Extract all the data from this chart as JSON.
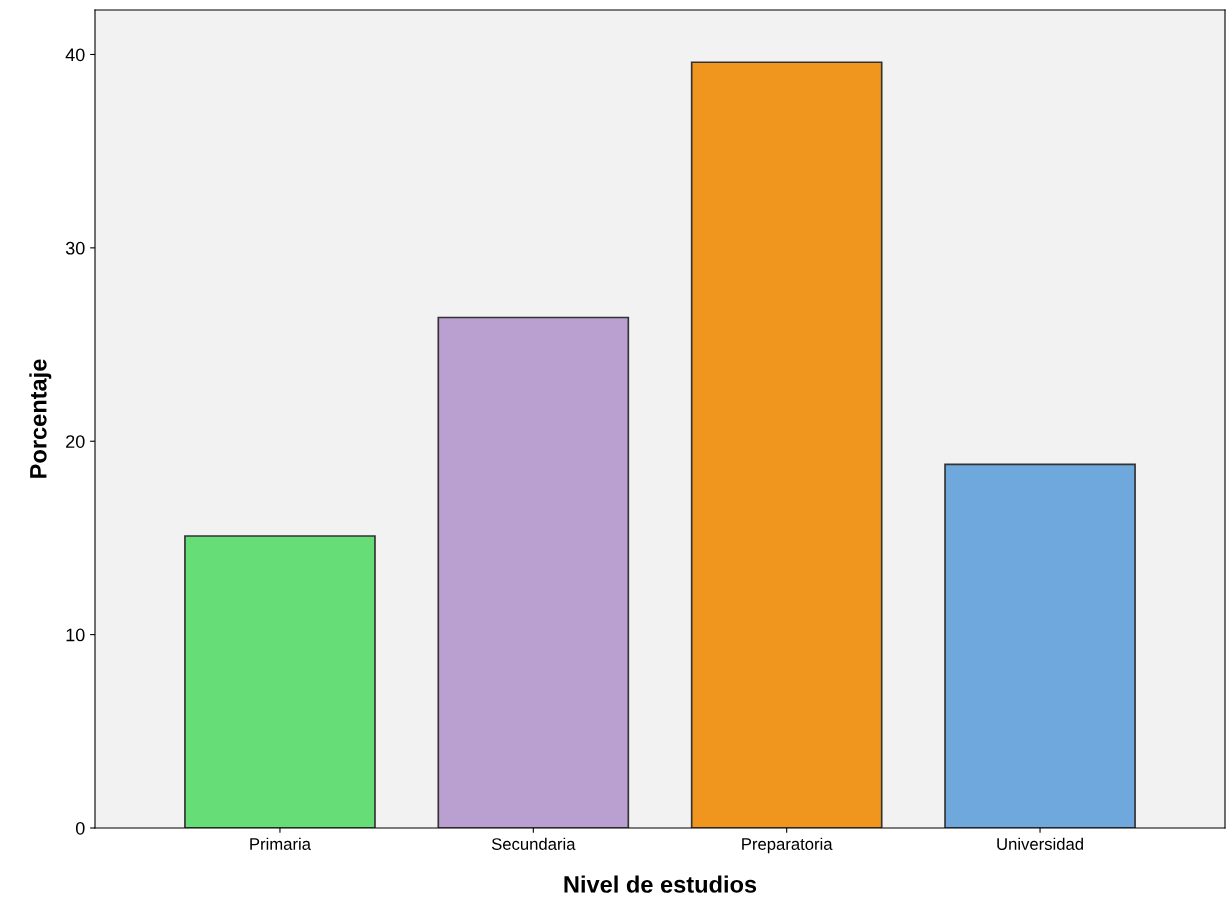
{
  "chart_data": {
    "type": "bar",
    "xlabel": "Nivel de estudios",
    "ylabel": "Porcentaje",
    "categories": [
      "Primaria",
      "Secundaria",
      "Preparatoria",
      "Universidad"
    ],
    "values": [
      15.1,
      26.4,
      39.6,
      18.8
    ],
    "colors": [
      "#66dd77",
      "#b9a0d0",
      "#f0961e",
      "#6fa8dc"
    ],
    "ylim": [
      0,
      42.3
    ],
    "yticks": [
      0,
      10,
      20,
      30,
      40
    ],
    "grid": false,
    "legend": false
  }
}
